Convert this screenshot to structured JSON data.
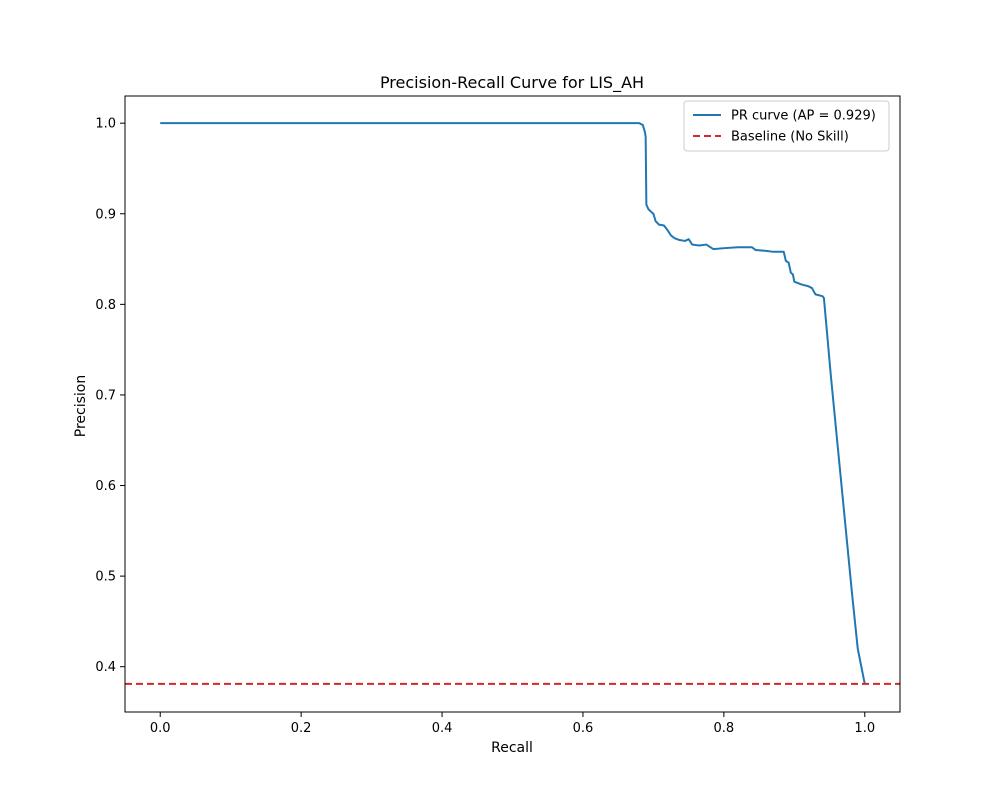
{
  "chart_data": {
    "type": "line",
    "title": "Precision-Recall Curve for LIS_AH",
    "xlabel": "Recall",
    "ylabel": "Precision",
    "xlim": [
      -0.05,
      1.05
    ],
    "ylim": [
      0.35,
      1.03
    ],
    "x_ticks": [
      0.0,
      0.2,
      0.4,
      0.6,
      0.8,
      1.0
    ],
    "x_tick_labels": [
      "0.0",
      "0.2",
      "0.4",
      "0.6",
      "0.8",
      "1.0"
    ],
    "y_ticks": [
      0.4,
      0.5,
      0.6,
      0.7,
      0.8,
      0.9,
      1.0
    ],
    "y_tick_labels": [
      "0.4",
      "0.5",
      "0.6",
      "0.7",
      "0.8",
      "0.9",
      "1.0"
    ],
    "grid": false,
    "legend_position": "upper right",
    "series": [
      {
        "name": "PR curve (AP = 0.929)",
        "color": "#1f77b4",
        "style": "solid",
        "points": [
          [
            0.0,
            1.0
          ],
          [
            0.68,
            1.0
          ],
          [
            0.685,
            0.998
          ],
          [
            0.688,
            0.99
          ],
          [
            0.689,
            0.985
          ],
          [
            0.69,
            0.91
          ],
          [
            0.693,
            0.905
          ],
          [
            0.697,
            0.902
          ],
          [
            0.7,
            0.9
          ],
          [
            0.703,
            0.892
          ],
          [
            0.708,
            0.888
          ],
          [
            0.715,
            0.887
          ],
          [
            0.72,
            0.882
          ],
          [
            0.725,
            0.876
          ],
          [
            0.73,
            0.873
          ],
          [
            0.737,
            0.871
          ],
          [
            0.745,
            0.87
          ],
          [
            0.75,
            0.872
          ],
          [
            0.755,
            0.866
          ],
          [
            0.765,
            0.865
          ],
          [
            0.775,
            0.866
          ],
          [
            0.785,
            0.861
          ],
          [
            0.8,
            0.862
          ],
          [
            0.82,
            0.863
          ],
          [
            0.84,
            0.863
          ],
          [
            0.845,
            0.86
          ],
          [
            0.86,
            0.859
          ],
          [
            0.87,
            0.858
          ],
          [
            0.885,
            0.858
          ],
          [
            0.888,
            0.848
          ],
          [
            0.892,
            0.846
          ],
          [
            0.895,
            0.835
          ],
          [
            0.898,
            0.833
          ],
          [
            0.9,
            0.825
          ],
          [
            0.91,
            0.822
          ],
          [
            0.92,
            0.82
          ],
          [
            0.925,
            0.818
          ],
          [
            0.93,
            0.811
          ],
          [
            0.94,
            0.809
          ],
          [
            0.942,
            0.807
          ],
          [
            0.952,
            0.72
          ],
          [
            0.962,
            0.64
          ],
          [
            0.972,
            0.56
          ],
          [
            0.982,
            0.48
          ],
          [
            0.99,
            0.42
          ],
          [
            1.0,
            0.381
          ]
        ]
      },
      {
        "name": "Baseline (No Skill)",
        "color": "#d62728",
        "style": "dashed",
        "y": 0.381
      }
    ]
  }
}
